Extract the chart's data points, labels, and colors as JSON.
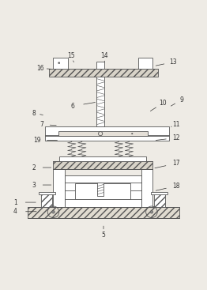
{
  "bg_color": "#eeebe5",
  "line_color": "#555555",
  "label_color": "#333333",
  "fig_width": 2.62,
  "fig_height": 3.67,
  "dpi": 100
}
